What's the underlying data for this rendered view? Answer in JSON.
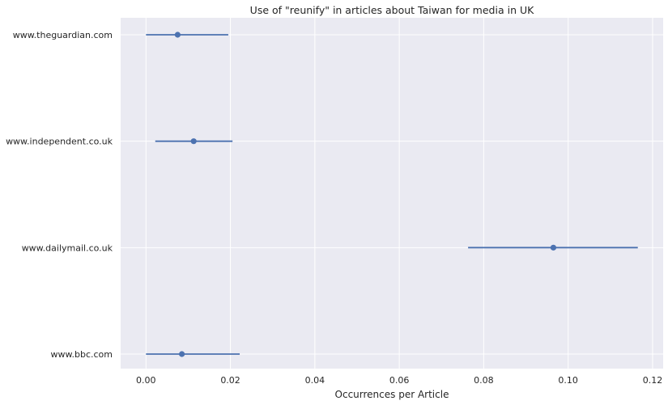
{
  "chart_data": {
    "type": "scatter",
    "title": "Use of \"reunify\" in articles about Taiwan for media in UK",
    "xlabel": "Occurrences per Article",
    "ylabel": "",
    "xlim": [
      -0.006,
      0.1225
    ],
    "xticks": [
      0.0,
      0.02,
      0.04,
      0.06,
      0.08,
      0.1,
      0.12
    ],
    "xtick_labels": [
      "0.00",
      "0.02",
      "0.04",
      "0.06",
      "0.08",
      "0.10",
      "0.12"
    ],
    "grid": true,
    "categories": [
      "www.theguardian.com",
      "www.independent.co.uk",
      "www.dailymail.co.uk",
      "www.bbc.com"
    ],
    "values": [
      0.0075,
      0.0113,
      0.0965,
      0.0085
    ],
    "ci_low": [
      0.0,
      0.0022,
      0.0763,
      0.0
    ],
    "ci_high": [
      0.0195,
      0.0205,
      0.1165,
      0.0222
    ],
    "colors": {
      "background": "#eaeaf2",
      "grid": "#ffffff",
      "series": "#4c72b0"
    }
  }
}
